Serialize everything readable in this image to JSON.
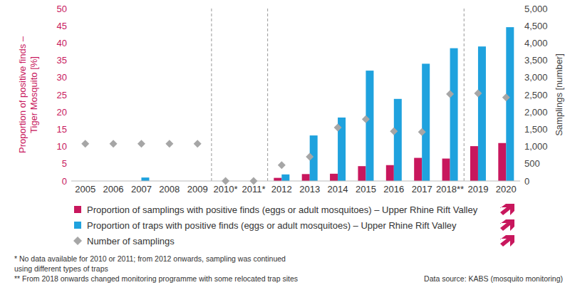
{
  "chart_data": {
    "type": "bar",
    "categories": [
      "2005",
      "2006",
      "2007",
      "2008",
      "2009",
      "2010*",
      "2011*",
      "2012",
      "2013",
      "2014",
      "2015",
      "2016",
      "2017",
      "2018**",
      "2019",
      "2020"
    ],
    "series": [
      {
        "name": "Proportion of samplings with positive finds (eggs or adult mosquitoes) – Upper Rhine Rift Valley",
        "type": "bar",
        "color": "#c8175d",
        "values": [
          0,
          0,
          0,
          0,
          0,
          null,
          null,
          0.9,
          2.0,
          2.1,
          4.3,
          4.6,
          6.7,
          6.5,
          10.1,
          11.0
        ]
      },
      {
        "name": "Proportion of traps with positive finds (eggs or adult mosquitoes) – Upper Rhine Rift Valley",
        "type": "bar",
        "color": "#1fa2de",
        "values": [
          0,
          0,
          1.0,
          0,
          0,
          null,
          null,
          1.9,
          13.2,
          18.4,
          32.0,
          23.8,
          34.0,
          38.5,
          39.0,
          44.6
        ]
      },
      {
        "name": "Number of samplings",
        "type": "scatter",
        "marker": "diamond",
        "color": "#a6a6a6",
        "axis": "y2",
        "values": [
          1080,
          1080,
          1080,
          1080,
          1080,
          0,
          0,
          460,
          700,
          1550,
          1790,
          1440,
          1420,
          2520,
          2540,
          2420
        ]
      }
    ],
    "ylabel": [
      "Proportion of positive finds –",
      "Tiger Mosquito [%]"
    ],
    "y2label": "Samplings [number]",
    "ylim": [
      0,
      50
    ],
    "yticks": [
      0,
      5,
      10,
      15,
      20,
      25,
      30,
      35,
      40,
      45,
      50
    ],
    "y2lim": [
      0,
      5000
    ],
    "y2ticks": [
      0,
      500,
      {
        "value": 1000,
        "label": "1,000"
      },
      {
        "value": 1500,
        "label": "1,500"
      },
      {
        "value": 2000,
        "label": "2,000"
      },
      {
        "value": 2500,
        "label": "2,500"
      },
      {
        "value": 3000,
        "label": "3,000"
      },
      {
        "value": 3500,
        "label": "3,500"
      },
      {
        "value": 4000,
        "label": "4,000"
      },
      {
        "value": 4500,
        "label": "4,500"
      },
      {
        "value": 5000,
        "label": "5,000"
      }
    ],
    "grid": false,
    "annotations": [
      "* No data available for 2010 or 2011; from 2012 onwards, sampling was continued",
      "using different types of traps",
      "** From 2018 onwards changed monitoring programme with some relocated trap sites"
    ],
    "source": "Data source: KABS (mosquito monitoring)"
  }
}
